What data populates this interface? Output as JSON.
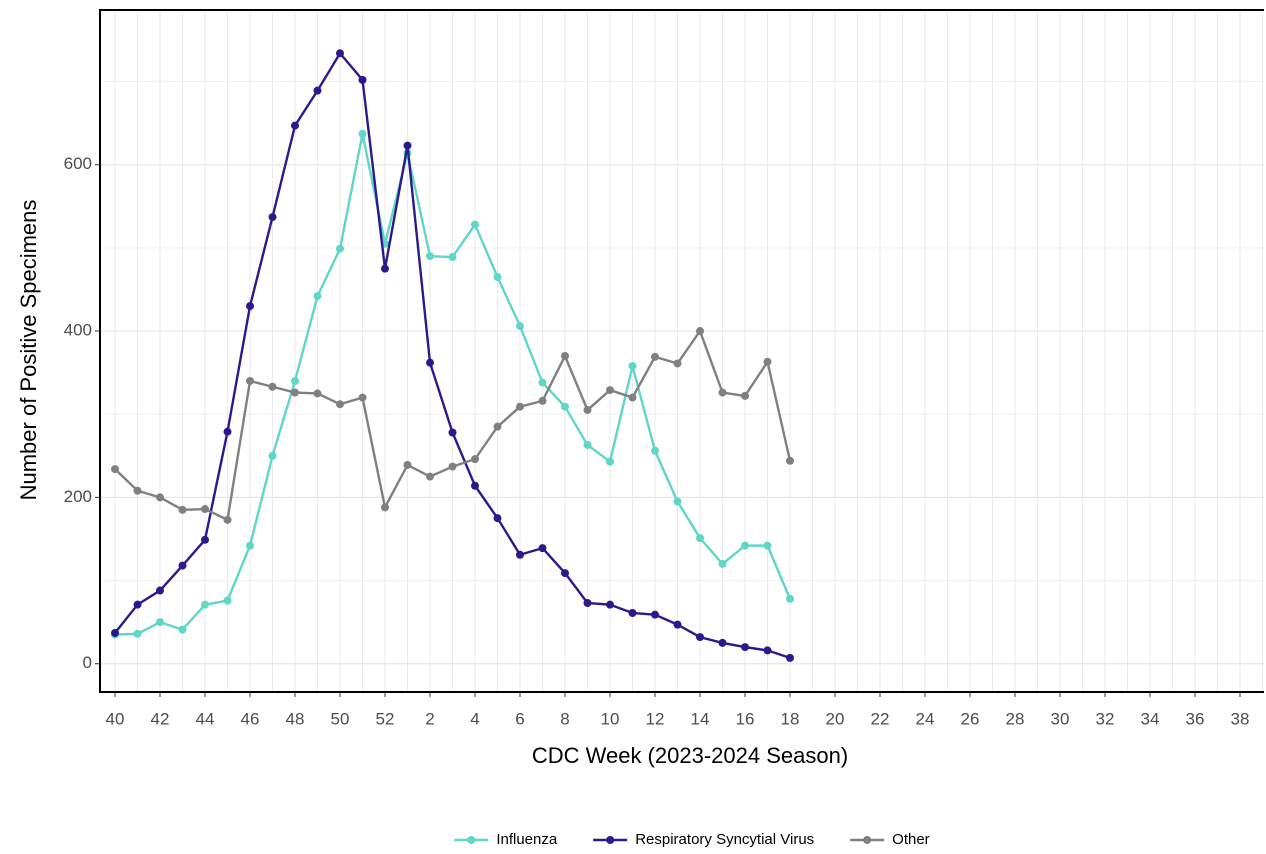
{
  "chart_data": {
    "type": "line",
    "x_label": "CDC Week (2023-2024 Season)",
    "y_label": "Number of Positive Specimens",
    "categories": [
      "40",
      null,
      "42",
      null,
      "44",
      null,
      "46",
      null,
      "48",
      null,
      "50",
      null,
      "52",
      null,
      "2",
      null,
      "4",
      null,
      "6",
      null,
      "8",
      null,
      "10",
      null,
      "12",
      null,
      "14",
      null,
      "16",
      null,
      "18",
      null,
      "20",
      null,
      "22",
      null,
      "24",
      null,
      "26",
      null,
      "28",
      null,
      "30",
      null,
      "32",
      null,
      "34",
      null,
      "36",
      null,
      "38",
      null
    ],
    "series": [
      {
        "name": "Influenza",
        "color": "#5fd6c8",
        "values": [
          35,
          36,
          50,
          41,
          71,
          76,
          142,
          250,
          340,
          442,
          499,
          637,
          505,
          614,
          490,
          489,
          528,
          465,
          406,
          338,
          309,
          263,
          243,
          358,
          256,
          195,
          151,
          120,
          142,
          142,
          78,
          null,
          null,
          null,
          null,
          null,
          null,
          null,
          null,
          null,
          null,
          null,
          null,
          null,
          null,
          null,
          null,
          null,
          null,
          null,
          null,
          null
        ]
      },
      {
        "name": "Respiratory Syncytial Virus",
        "color": "#2a1a8c",
        "values": [
          37,
          71,
          88,
          118,
          149,
          279,
          430,
          537,
          647,
          689,
          734,
          702,
          475,
          623,
          362,
          278,
          214,
          175,
          131,
          139,
          109,
          73,
          71,
          61,
          59,
          47,
          32,
          25,
          20,
          16,
          7,
          null,
          null,
          null,
          null,
          null,
          null,
          null,
          null,
          null,
          null,
          null,
          null,
          null,
          null,
          null,
          null,
          null,
          null,
          null,
          null,
          null
        ]
      },
      {
        "name": "Other",
        "color": "#808080",
        "values": [
          234,
          208,
          200,
          185,
          186,
          173,
          340,
          333,
          326,
          325,
          312,
          320,
          188,
          239,
          225,
          237,
          246,
          285,
          309,
          316,
          370,
          305,
          329,
          320,
          369,
          361,
          400,
          326,
          322,
          363,
          244,
          null,
          null,
          null,
          null,
          null,
          null,
          null,
          null,
          null,
          null,
          null,
          null,
          null,
          null,
          null,
          null,
          null,
          null,
          null,
          null,
          null
        ]
      }
    ],
    "ylim": [
      -34,
      786
    ],
    "yticks": [
      0,
      200,
      400,
      600
    ],
    "yminorticks": [
      100,
      300,
      500,
      700
    ],
    "grid": true,
    "legend": "bottom"
  }
}
